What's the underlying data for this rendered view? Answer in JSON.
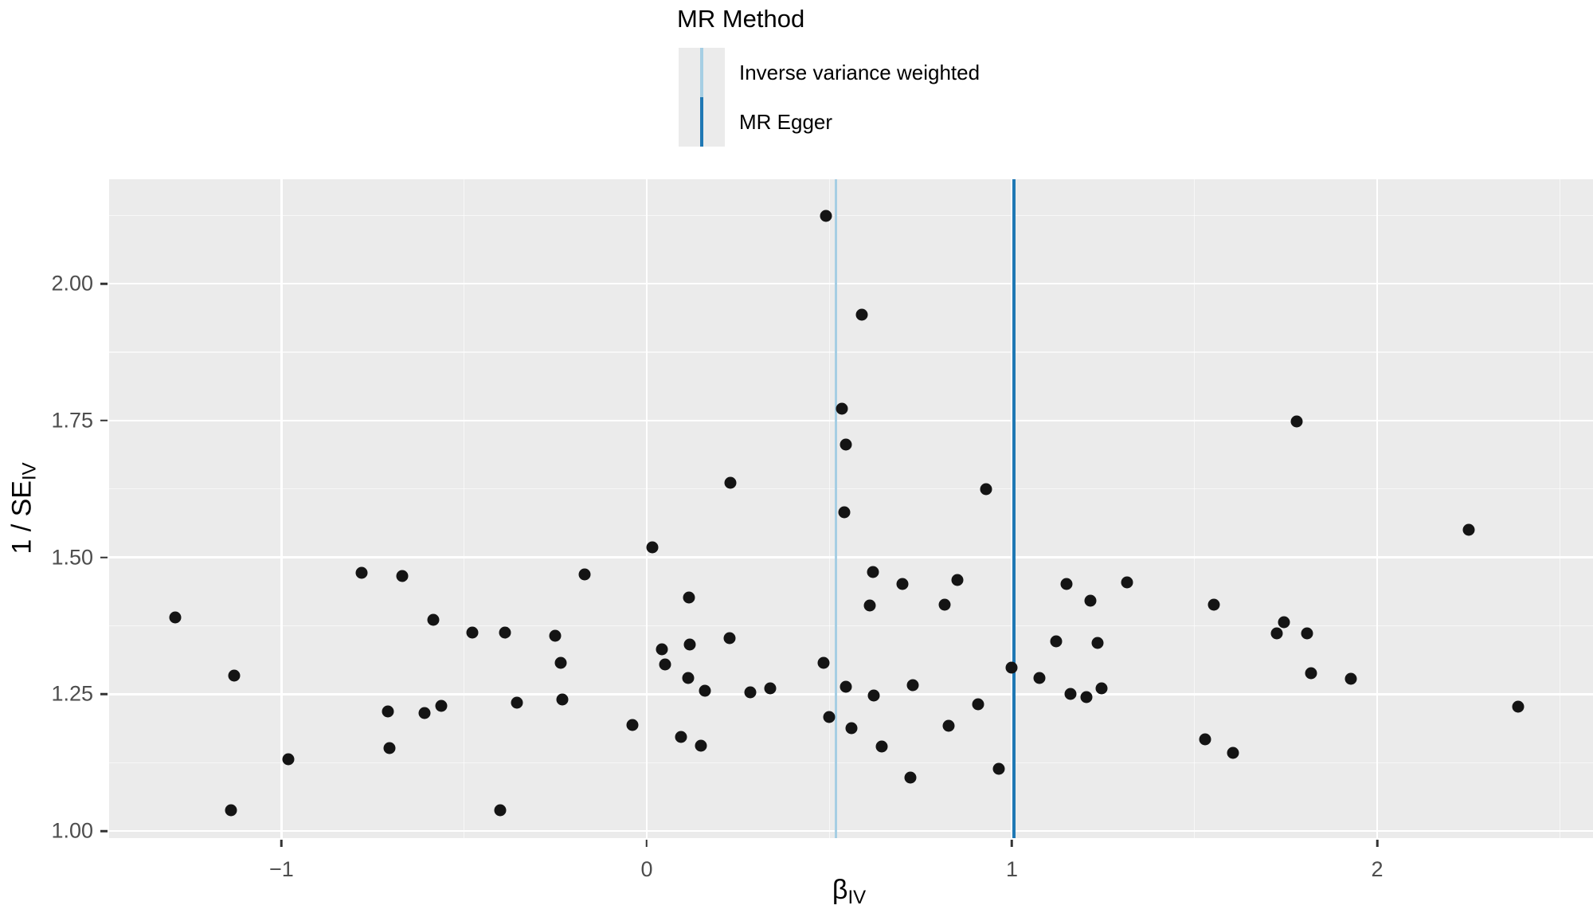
{
  "legend": {
    "title": "MR Method",
    "items": [
      {
        "label": "Inverse variance weighted",
        "color": "#a6cee3"
      },
      {
        "label": "MR Egger",
        "color": "#1f78b4"
      }
    ]
  },
  "axes": {
    "x": {
      "title_base": "β",
      "title_sub": "IV"
    },
    "y": {
      "title_base": "1 / SE",
      "title_sub": "IV"
    }
  },
  "chart_data": {
    "type": "scatter",
    "title": "",
    "xlabel": "beta_IV",
    "ylabel": "1/SE_IV",
    "x_domain": [
      -1.472,
      2.591
    ],
    "y_domain": [
      0.987,
      2.191
    ],
    "x_major_ticks": [
      -1,
      0,
      1,
      2
    ],
    "x_tick_labels": [
      "−1",
      "0",
      "1",
      "2"
    ],
    "x_minor_ticks": [
      -0.5,
      0.5,
      1.5,
      2.5
    ],
    "y_major_ticks": [
      1.0,
      1.25,
      1.5,
      1.75,
      2.0
    ],
    "y_tick_labels": [
      "1.00",
      "1.25",
      "1.50",
      "1.75",
      "2.00"
    ],
    "y_minor_ticks": [
      1.125,
      1.375,
      1.625,
      1.875,
      2.125
    ],
    "grid": true,
    "legend_position": "top",
    "panel_background": "#ebebeb",
    "gridline_color": "#ffffff",
    "point_color": "#141414",
    "vlines": [
      {
        "method": "Inverse variance weighted",
        "x": 0.517,
        "color": "#a6cee3",
        "width": 3
      },
      {
        "method": "MR Egger",
        "x": 1.005,
        "color": "#1f78b4",
        "width": 3.5
      }
    ],
    "points": [
      [
        0.49,
        2.124
      ],
      [
        0.59,
        1.943
      ],
      [
        0.535,
        1.772
      ],
      [
        0.545,
        1.706
      ],
      [
        0.23,
        1.637
      ],
      [
        0.93,
        1.624
      ],
      [
        0.54,
        1.583
      ],
      [
        1.78,
        1.749
      ],
      [
        2.25,
        1.55
      ],
      [
        0.015,
        1.519
      ],
      [
        -0.78,
        1.472
      ],
      [
        -0.67,
        1.466
      ],
      [
        -0.17,
        1.469
      ],
      [
        0.62,
        1.473
      ],
      [
        0.7,
        1.451
      ],
      [
        0.85,
        1.458
      ],
      [
        1.15,
        1.452
      ],
      [
        1.315,
        1.455
      ],
      [
        -1.29,
        1.39
      ],
      [
        -0.585,
        1.386
      ],
      [
        0.115,
        1.427
      ],
      [
        0.61,
        1.412
      ],
      [
        0.815,
        1.414
      ],
      [
        1.215,
        1.421
      ],
      [
        1.553,
        1.414
      ],
      [
        -0.478,
        1.363
      ],
      [
        -0.388,
        1.362
      ],
      [
        -0.251,
        1.357
      ],
      [
        0.227,
        1.352
      ],
      [
        1.121,
        1.347
      ],
      [
        1.234,
        1.343
      ],
      [
        1.745,
        1.382
      ],
      [
        1.725,
        1.361
      ],
      [
        1.808,
        1.361
      ],
      [
        -0.236,
        1.307
      ],
      [
        0.041,
        1.332
      ],
      [
        0.117,
        1.341
      ],
      [
        0.05,
        1.304
      ],
      [
        0.484,
        1.308
      ],
      [
        0.999,
        1.299
      ],
      [
        -1.13,
        1.284
      ],
      [
        0.113,
        1.279
      ],
      [
        1.075,
        1.28
      ],
      [
        1.819,
        1.289
      ],
      [
        1.928,
        1.278
      ],
      [
        -0.356,
        1.234
      ],
      [
        -0.231,
        1.24
      ],
      [
        -0.709,
        1.218
      ],
      [
        -0.608,
        1.215
      ],
      [
        -0.563,
        1.228
      ],
      [
        0.159,
        1.256
      ],
      [
        0.284,
        1.254
      ],
      [
        0.338,
        1.26
      ],
      [
        0.545,
        1.263
      ],
      [
        0.621,
        1.248
      ],
      [
        0.728,
        1.267
      ],
      [
        1.16,
        1.251
      ],
      [
        1.204,
        1.245
      ],
      [
        1.245,
        1.26
      ],
      [
        0.907,
        1.231
      ],
      [
        2.386,
        1.227
      ],
      [
        -0.039,
        1.194
      ],
      [
        0.499,
        1.209
      ],
      [
        0.561,
        1.188
      ],
      [
        0.827,
        1.193
      ],
      [
        0.094,
        1.172
      ],
      [
        0.148,
        1.156
      ],
      [
        0.643,
        1.154
      ],
      [
        -0.704,
        1.152
      ],
      [
        -0.981,
        1.131
      ],
      [
        1.529,
        1.168
      ],
      [
        1.605,
        1.143
      ],
      [
        0.965,
        1.113
      ],
      [
        0.722,
        1.097
      ],
      [
        -1.138,
        1.038
      ],
      [
        -0.401,
        1.038
      ]
    ]
  }
}
